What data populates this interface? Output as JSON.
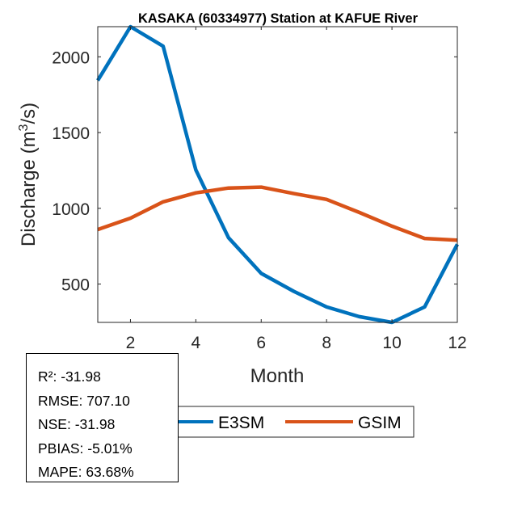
{
  "chart_data": {
    "type": "line",
    "title": "KASAKA (60334977)  Station at  KAFUE  River",
    "xlabel": "Month",
    "ylabel": "Discharge (m³/s)",
    "ylabel_parts": {
      "main": "Discharge (m",
      "sup": "3",
      "end": "/s)"
    },
    "x": [
      1,
      2,
      3,
      4,
      5,
      6,
      7,
      8,
      9,
      10,
      11,
      12
    ],
    "xlim": [
      1,
      12
    ],
    "ylim": [
      247,
      2199
    ],
    "xticks": [
      2,
      4,
      6,
      8,
      10,
      12
    ],
    "yticks": [
      500,
      1000,
      1500,
      2000
    ],
    "xtick_labels": [
      "2",
      "4",
      "6",
      "8",
      "10",
      "12"
    ],
    "ytick_labels": [
      "500",
      "1000",
      "1500",
      "2000"
    ],
    "grid": false,
    "series": [
      {
        "name": "E3SM",
        "color": "#0072BD",
        "values": [
          1844,
          2199,
          2070,
          1253,
          806,
          570,
          452,
          349,
          285,
          247,
          349,
          763
        ]
      },
      {
        "name": "GSIM",
        "color": "#D95319",
        "values": [
          860,
          935,
          1043,
          1102,
          1134,
          1140,
          1097,
          1059,
          973,
          882,
          801,
          790
        ]
      }
    ],
    "legend": {
      "placement": "bottom-center",
      "orientation": "horizontal",
      "entries": [
        "E3SM",
        "GSIM"
      ]
    }
  },
  "stats": {
    "lines": [
      "R²: -31.98",
      "RMSE: 707.10",
      "NSE: -31.98",
      "PBIAS: -5.01%",
      "MAPE: 63.68%"
    ]
  }
}
